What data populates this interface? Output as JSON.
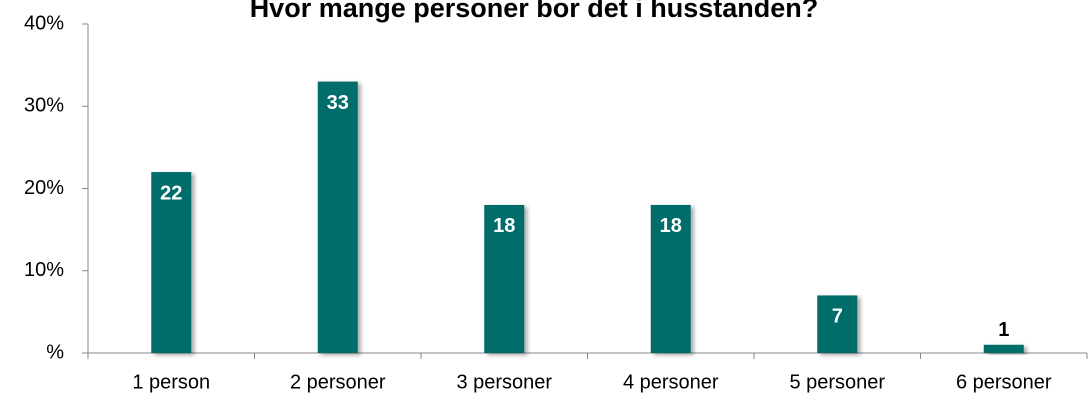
{
  "chart_data": {
    "type": "bar",
    "title": "Hvor mange personer bor det i husstanden?",
    "categories": [
      "1 person",
      "2 personer",
      "3 personer",
      "4 personer",
      "5 personer",
      "6 personer"
    ],
    "values": [
      22,
      33,
      18,
      18,
      7,
      1
    ],
    "color": "#006d6b",
    "ylim": [
      0,
      40
    ],
    "yticks": [
      {
        "value": 0,
        "label": "%"
      },
      {
        "value": 10,
        "label": "10%"
      },
      {
        "value": 20,
        "label": "20%"
      },
      {
        "value": 30,
        "label": "30%"
      },
      {
        "value": 40,
        "label": "40%"
      }
    ],
    "grid": false
  }
}
